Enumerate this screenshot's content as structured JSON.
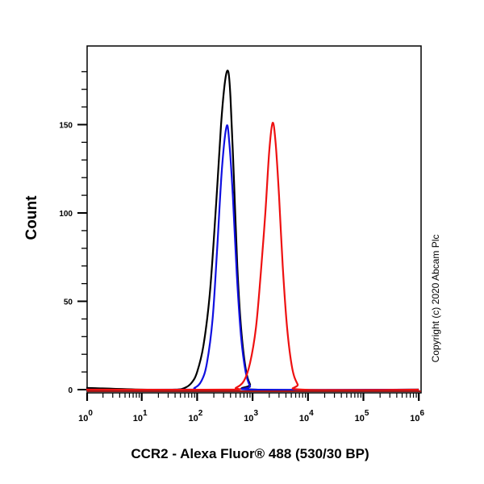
{
  "chart_data": {
    "type": "line",
    "title": "",
    "xlabel": "CCR2 - Alexa Fluor® 488 (530/30 BP)",
    "ylabel": "Count",
    "xscale": "log",
    "xlim": [
      1,
      1000000
    ],
    "ylim": [
      0,
      180
    ],
    "x_ticks": [
      "10^0",
      "10^1",
      "10^2",
      "10^3",
      "10^4",
      "10^5",
      "10^6"
    ],
    "y_ticks": [
      0,
      50,
      100,
      150
    ],
    "grid": false,
    "legend": null,
    "annotation": "Copyright (c) 2020 Abcam Plc",
    "series": [
      {
        "name": "black",
        "color": "#000000",
        "points": [
          [
            1,
            1
          ],
          [
            10,
            0
          ],
          [
            40,
            0
          ],
          [
            60,
            1
          ],
          [
            80,
            4
          ],
          [
            100,
            10
          ],
          [
            130,
            25
          ],
          [
            170,
            55
          ],
          [
            220,
            105
          ],
          [
            270,
            150
          ],
          [
            320,
            175
          ],
          [
            365,
            180
          ],
          [
            400,
            165
          ],
          [
            460,
            120
          ],
          [
            530,
            70
          ],
          [
            620,
            35
          ],
          [
            750,
            12
          ],
          [
            900,
            3
          ],
          [
            1100,
            0
          ],
          [
            1000000,
            0
          ]
        ]
      },
      {
        "name": "blue",
        "color": "#1010e0",
        "points": [
          [
            1,
            0
          ],
          [
            60,
            0
          ],
          [
            90,
            1
          ],
          [
            120,
            5
          ],
          [
            150,
            15
          ],
          [
            190,
            40
          ],
          [
            230,
            80
          ],
          [
            280,
            125
          ],
          [
            340,
            149
          ],
          [
            380,
            140
          ],
          [
            440,
            110
          ],
          [
            520,
            65
          ],
          [
            620,
            30
          ],
          [
            750,
            10
          ],
          [
            900,
            2
          ],
          [
            1100,
            0
          ],
          [
            1000000,
            0
          ]
        ]
      },
      {
        "name": "red",
        "color": "#ee1111",
        "points": [
          [
            1,
            0
          ],
          [
            350,
            0
          ],
          [
            500,
            1
          ],
          [
            700,
            5
          ],
          [
            900,
            15
          ],
          [
            1150,
            35
          ],
          [
            1400,
            65
          ],
          [
            1700,
            100
          ],
          [
            2000,
            135
          ],
          [
            2300,
            151
          ],
          [
            2600,
            140
          ],
          [
            3000,
            110
          ],
          [
            3500,
            70
          ],
          [
            4200,
            35
          ],
          [
            5200,
            12
          ],
          [
            6500,
            3
          ],
          [
            8000,
            0
          ],
          [
            1000000,
            0
          ]
        ]
      }
    ]
  },
  "labels": {
    "ylabel": "Count",
    "xlabel": "CCR2 - Alexa Fluor® 488 (530/30 BP)",
    "copyright": "Copyright (c) 2020 Abcam Plc",
    "y_ticks": [
      "0",
      "50",
      "100",
      "150"
    ],
    "x_ticks_base": "10",
    "x_ticks_exp": [
      "0",
      "1",
      "2",
      "3",
      "4",
      "5",
      "6"
    ]
  }
}
